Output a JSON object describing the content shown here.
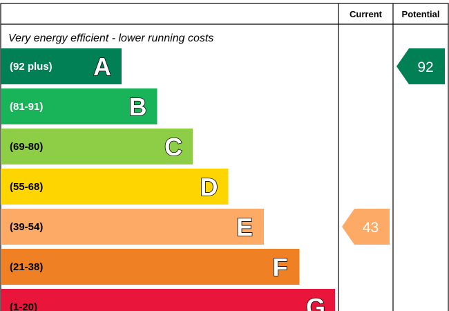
{
  "header": {
    "current_label": "Current",
    "potential_label": "Potential"
  },
  "subtitle": "Very energy efficient - lower running costs",
  "chart_data": {
    "type": "bar",
    "categories": [
      "A",
      "B",
      "C",
      "D",
      "E",
      "F",
      "G"
    ],
    "ranges": [
      "(92 plus)",
      "(81-91)",
      "(69-80)",
      "(55-68)",
      "(39-54)",
      "(21-38)",
      "(1-20)"
    ],
    "colors": [
      "#008054",
      "#19b459",
      "#8dce46",
      "#ffd500",
      "#fcaa65",
      "#ef8023",
      "#e9153b"
    ],
    "range_text_colors": [
      "#ffffff",
      "#ffffff",
      "#000000",
      "#000000",
      "#000000",
      "#000000",
      "#000000"
    ],
    "current": {
      "value": 43,
      "band": "E",
      "color": "#fcaa65"
    },
    "potential": {
      "value": 92,
      "band": "A",
      "color": "#008054"
    }
  }
}
